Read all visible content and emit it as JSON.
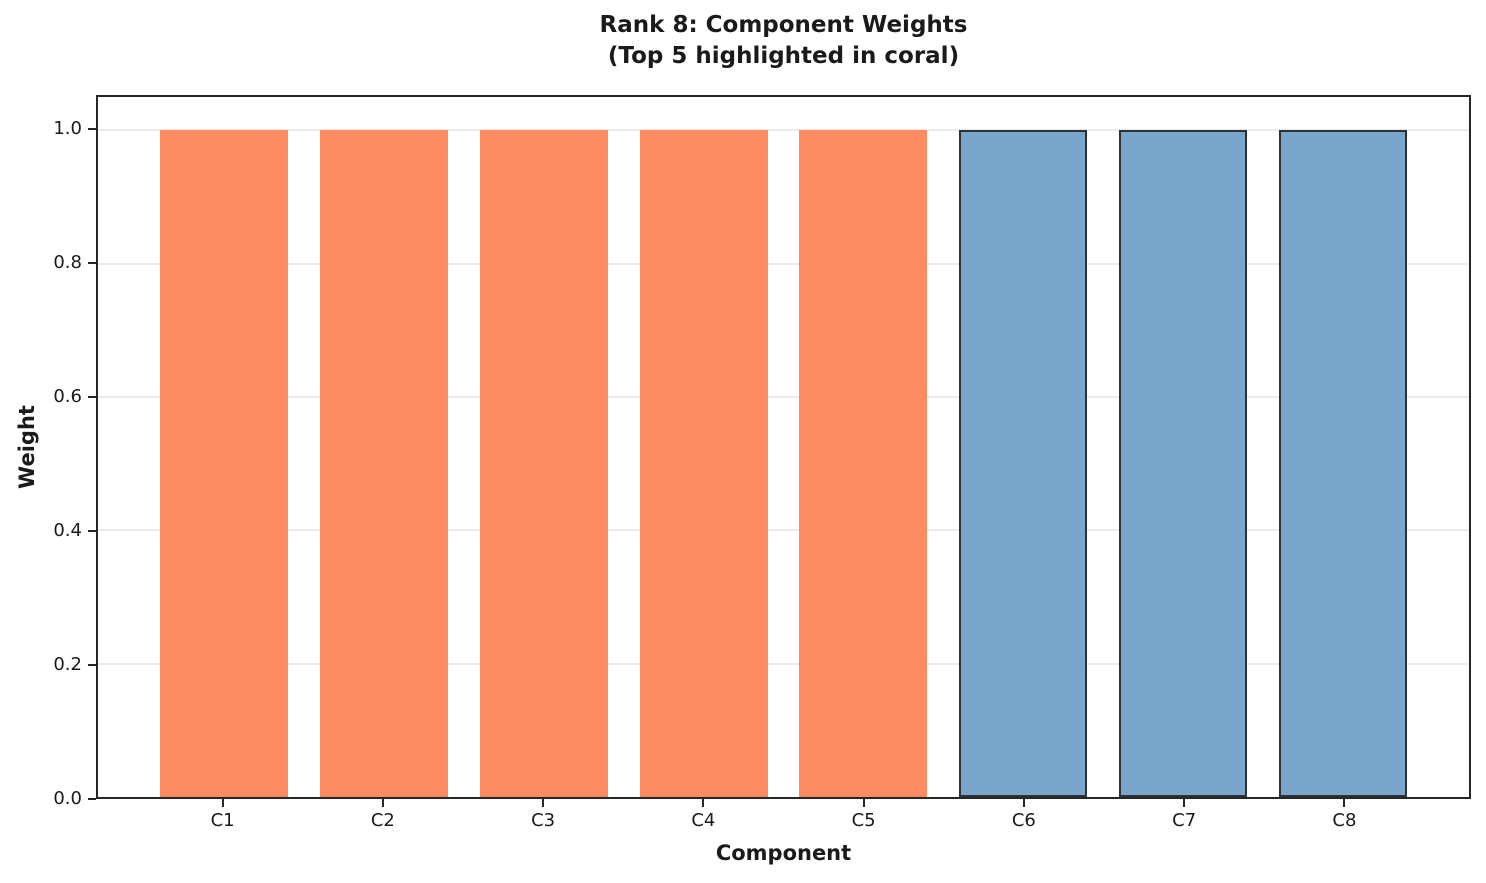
{
  "chart_data": {
    "type": "bar",
    "title": "Rank 8: Component Weights",
    "subtitle": "(Top 5 highlighted in coral)",
    "xlabel": "Component",
    "ylabel": "Weight",
    "categories": [
      "C1",
      "C2",
      "C3",
      "C4",
      "C5",
      "C6",
      "C7",
      "C8"
    ],
    "values": [
      1.0,
      1.0,
      1.0,
      1.0,
      1.0,
      1.0,
      1.0,
      1.0
    ],
    "highlight_count": 5,
    "colors": {
      "highlight": "#FD8C64",
      "base": "#7BA6CB",
      "base_edge": "#2D3138",
      "spine": "#262626",
      "grid": "#EBEBEB",
      "text": "#1A1A1A"
    },
    "yticks": [
      0.0,
      0.2,
      0.4,
      0.6,
      0.8,
      1.0
    ],
    "ytick_labels": [
      "0.0",
      "0.2",
      "0.4",
      "0.6",
      "0.8",
      "1.0"
    ],
    "ylim": [
      0,
      1.05
    ],
    "grid_axis": "y",
    "legend": null
  }
}
